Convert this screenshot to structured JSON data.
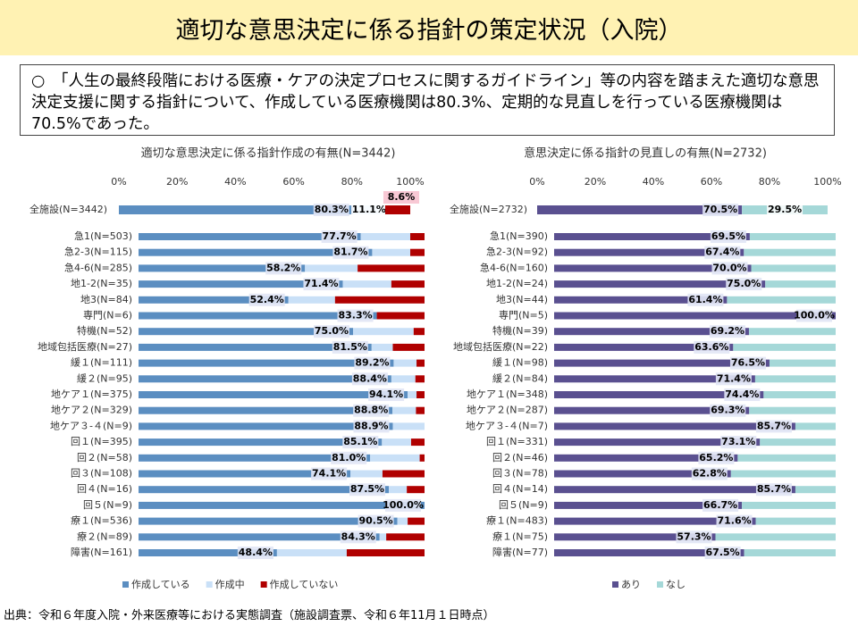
{
  "title": "適切な意思決定に係る指針の策定状況（入院）",
  "summary": "○　「人生の最終段階における医療・ケアの決定プロセスに関するガイドライン」等の内容を踏まえた適切な意思決定支援に関する指針について、作成している医療機関は80.3%、定期的な見直しを行っている医療機関は70.5%であった。",
  "source": "出典：令和６年度入院・外来医療等における実態調査（施設調査票、令和６年11月１日時点）",
  "chart_data": [
    {
      "type": "bar",
      "title": "適切な意思決定に係る指針作成の有無(N=3442)",
      "categories": [
        "全施設(N=3442)",
        "急1(N=503)",
        "急2-3(N=115)",
        "急4-6(N=285)",
        "地1-2(N=35)",
        "地3(N=84)",
        "専門(N=6)",
        "特機(N=52)",
        "地域包括医療(N=27)",
        "緩１(N=111)",
        "緩２(N=95)",
        "地ケア１(N=375)",
        "地ケア２(N=329)",
        "地ケア３-４(N=9)",
        "回１(N=395)",
        "回２(N=58)",
        "回３(N=108)",
        "回４(N=16)",
        "回５(N=9)",
        "療１(N=536)",
        "療２(N=89)",
        "障害(N=161)"
      ],
      "series": [
        {
          "name": "作成している",
          "color": "#5b8ec1",
          "values": [
            80.3,
            77.7,
            81.7,
            58.2,
            71.4,
            52.4,
            83.3,
            75.0,
            81.5,
            89.2,
            88.4,
            94.1,
            88.8,
            88.9,
            85.1,
            81.0,
            74.1,
            87.5,
            100.0,
            90.5,
            84.3,
            48.4
          ],
          "value_labels": [
            "80.3%",
            "77.7%",
            "81.7%",
            "58.2%",
            "71.4%",
            "52.4%",
            "83.3%",
            "75.0%",
            "81.5%",
            "89.2%",
            "88.4%",
            "94.1%",
            "88.8%",
            "88.9%",
            "85.1%",
            "81.0%",
            "74.1%",
            "87.5%",
            "100.0%",
            "90.5%",
            "84.3%",
            "48.4%"
          ]
        },
        {
          "name": "作成中",
          "color": "#c9e0f7",
          "values": [
            11.1,
            17.3,
            13.3,
            18.4,
            17.0,
            16.3,
            0,
            21.2,
            7.4,
            8.0,
            8.4,
            3.1,
            8.2,
            11.1,
            10.2,
            17.3,
            11.2,
            6.3,
            0,
            3.6,
            2.3,
            24.4
          ],
          "value_labels": [
            "11.1%",
            null,
            null,
            null,
            null,
            null,
            null,
            null,
            null,
            null,
            null,
            null,
            null,
            null,
            null,
            null,
            null,
            null,
            null,
            null,
            null,
            null
          ]
        },
        {
          "name": "作成していない",
          "color": "#b00000",
          "values": [
            8.6,
            5.0,
            5.0,
            23.4,
            11.6,
            31.3,
            16.7,
            3.8,
            11.1,
            2.8,
            3.2,
            2.8,
            3.0,
            0,
            4.7,
            1.7,
            14.7,
            6.2,
            0,
            5.9,
            13.4,
            27.2
          ],
          "value_labels": [
            "8.6%",
            null,
            null,
            null,
            null,
            null,
            null,
            null,
            null,
            null,
            null,
            null,
            null,
            null,
            null,
            null,
            null,
            null,
            null,
            null,
            null,
            null
          ]
        }
      ],
      "xlim": [
        0,
        100
      ],
      "xticks": [
        {
          "value": 0,
          "label": "0%"
        },
        {
          "value": 20,
          "label": "20%"
        },
        {
          "value": 40,
          "label": "40%"
        },
        {
          "value": 60,
          "label": "60%"
        },
        {
          "value": 80,
          "label": "80%"
        },
        {
          "value": 100,
          "label": "100%"
        }
      ],
      "stacked": true,
      "legend": "bottom"
    },
    {
      "type": "bar",
      "title": "意思決定に係る指針の見直しの有無(N=2732)",
      "categories": [
        "全施設(N=2732)",
        "急1(N=390)",
        "急2-3(N=92)",
        "急4-6(N=160)",
        "地1-2(N=24)",
        "地3(N=44)",
        "専門(N=5)",
        "特機(N=39)",
        "地域包括医療(N=22)",
        "緩１(N=98)",
        "緩２(N=84)",
        "地ケア１(N=348)",
        "地ケア２(N=287)",
        "地ケア３-４(N=7)",
        "回１(N=331)",
        "回２(N=46)",
        "回３(N=78)",
        "回４(N=14)",
        "回５(N=9)",
        "療１(N=483)",
        "療１(N=75)",
        "障害(N=77)"
      ],
      "series": [
        {
          "name": "あり",
          "color": "#5a5090",
          "values": [
            70.5,
            69.5,
            67.4,
            70.0,
            75.0,
            61.4,
            100.0,
            69.2,
            63.6,
            76.5,
            71.4,
            74.4,
            69.3,
            85.7,
            73.1,
            65.2,
            62.8,
            85.7,
            66.7,
            71.6,
            57.3,
            67.5
          ],
          "value_labels": [
            "70.5%",
            "69.5%",
            "67.4%",
            "70.0%",
            "75.0%",
            "61.4%",
            "100.0%",
            "69.2%",
            "63.6%",
            "76.5%",
            "71.4%",
            "74.4%",
            "69.3%",
            "85.7%",
            "73.1%",
            "65.2%",
            "62.8%",
            "85.7%",
            "66.7%",
            "71.6%",
            "57.3%",
            "67.5%"
          ]
        },
        {
          "name": "なし",
          "color": "#a5d8d8",
          "values": [
            29.5,
            30.5,
            32.6,
            30.0,
            25.0,
            38.6,
            0,
            30.8,
            36.4,
            23.5,
            28.6,
            25.6,
            30.7,
            14.3,
            26.9,
            34.8,
            37.2,
            14.3,
            33.3,
            28.4,
            42.7,
            32.5
          ],
          "value_labels": [
            "29.5%",
            null,
            null,
            null,
            null,
            null,
            null,
            null,
            null,
            null,
            null,
            null,
            null,
            null,
            null,
            null,
            null,
            null,
            null,
            null,
            null,
            null
          ]
        }
      ],
      "xlim": [
        0,
        100
      ],
      "xticks": [
        {
          "value": 0,
          "label": "0%"
        },
        {
          "value": 20,
          "label": "20%"
        },
        {
          "value": 40,
          "label": "40%"
        },
        {
          "value": 60,
          "label": "60%"
        },
        {
          "value": 80,
          "label": "80%"
        },
        {
          "value": 100,
          "label": "100%"
        }
      ],
      "stacked": true,
      "legend": "bottom"
    }
  ]
}
